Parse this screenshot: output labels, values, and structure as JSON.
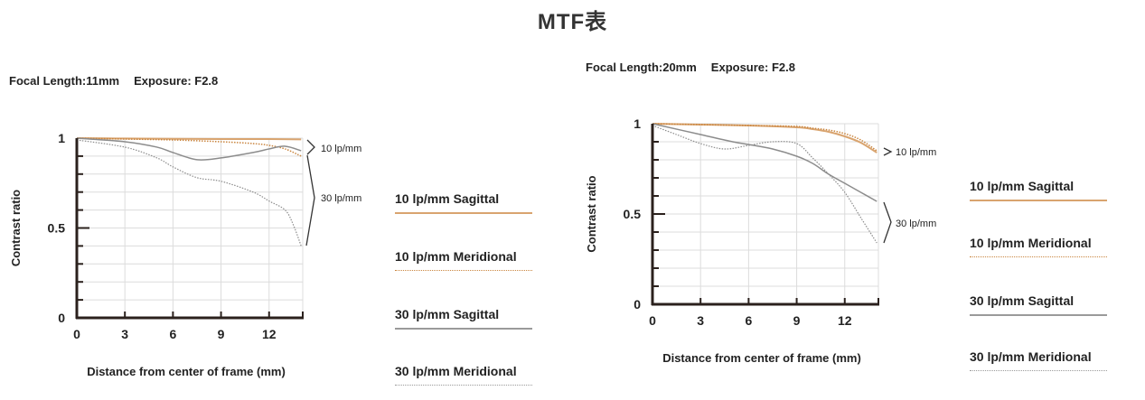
{
  "title": "MTF表",
  "colors": {
    "sagittal10": "#d9a46f",
    "meridional10": "#c9853f",
    "sagittal30": "#8c8c8c",
    "meridional30": "#8c8c8c",
    "axis": "#2b211d",
    "grid": "#dcdcdc"
  },
  "chart_data": [
    {
      "type": "line",
      "info": {
        "focal_length": "Focal Length:11mm",
        "exposure": "Exposure: F2.8"
      },
      "xlabel": "Distance from center of frame (mm)",
      "ylabel": "Contrast ratio",
      "xlim": [
        0,
        14.1
      ],
      "ylim": [
        0,
        1
      ],
      "xticks": [
        0,
        3,
        6,
        9,
        12
      ],
      "xtick_labels": [
        "0",
        "3",
        "6",
        "9",
        "12"
      ],
      "yticks": [
        0,
        0.5,
        1
      ],
      "ytick_labels": [
        "0",
        "0.5",
        "1"
      ],
      "grid": true,
      "annotations": [
        "10 lp/mm",
        "30 lp/mm"
      ],
      "series": [
        {
          "name": "10 lp/mm Sagittal",
          "x": [
            0,
            3,
            6,
            9,
            12,
            14
          ],
          "y": [
            1.0,
            0.998,
            0.996,
            0.995,
            0.995,
            0.993
          ]
        },
        {
          "name": "10 lp/mm Meridional",
          "x": [
            0,
            3,
            6,
            9,
            11,
            12,
            13,
            14
          ],
          "y": [
            1.0,
            0.995,
            0.99,
            0.98,
            0.97,
            0.96,
            0.94,
            0.9
          ]
        },
        {
          "name": "30 lp/mm Sagittal",
          "x": [
            0,
            3,
            5,
            6,
            7.5,
            9,
            11,
            12,
            13,
            14
          ],
          "y": [
            1.0,
            0.98,
            0.95,
            0.92,
            0.88,
            0.89,
            0.92,
            0.94,
            0.955,
            0.93
          ]
        },
        {
          "name": "30 lp/mm Meridional",
          "x": [
            0,
            3,
            5,
            6,
            7.5,
            9,
            11,
            12,
            13,
            13.5,
            14
          ],
          "y": [
            0.99,
            0.95,
            0.89,
            0.84,
            0.78,
            0.76,
            0.7,
            0.65,
            0.6,
            0.52,
            0.4
          ]
        }
      ]
    },
    {
      "type": "line",
      "info": {
        "focal_length": "Focal Length:20mm",
        "exposure": "Exposure: F2.8"
      },
      "xlabel": "Distance from center of frame (mm)",
      "ylabel": "Contrast ratio",
      "xlim": [
        0,
        14.1
      ],
      "ylim": [
        0,
        1
      ],
      "xticks": [
        0,
        3,
        6,
        9,
        12
      ],
      "xtick_labels": [
        "0",
        "3",
        "6",
        "9",
        "12"
      ],
      "yticks": [
        0,
        0.5,
        1
      ],
      "ytick_labels": [
        "0",
        "0.5",
        "1"
      ],
      "grid": true,
      "annotations": [
        "10 lp/mm",
        "30 lp/mm"
      ],
      "series": [
        {
          "name": "10 lp/mm Sagittal",
          "x": [
            0,
            3,
            6,
            9,
            10,
            11,
            12,
            13,
            14
          ],
          "y": [
            1.0,
            0.995,
            0.99,
            0.98,
            0.97,
            0.955,
            0.93,
            0.895,
            0.84
          ]
        },
        {
          "name": "10 lp/mm Meridional",
          "x": [
            0,
            3,
            6,
            9,
            10,
            11,
            12,
            13,
            14
          ],
          "y": [
            1.0,
            0.995,
            0.99,
            0.985,
            0.975,
            0.965,
            0.945,
            0.91,
            0.85
          ]
        },
        {
          "name": "30 lp/mm Sagittal",
          "x": [
            0,
            3,
            5,
            6,
            7.5,
            9,
            10,
            11,
            12,
            13,
            14
          ],
          "y": [
            1.0,
            0.94,
            0.9,
            0.885,
            0.86,
            0.82,
            0.78,
            0.72,
            0.67,
            0.62,
            0.57
          ]
        },
        {
          "name": "30 lp/mm Meridional",
          "x": [
            0,
            1.5,
            3,
            4.5,
            6,
            7.5,
            9,
            10,
            11,
            12,
            13,
            14
          ],
          "y": [
            0.99,
            0.94,
            0.89,
            0.86,
            0.88,
            0.9,
            0.89,
            0.81,
            0.72,
            0.62,
            0.48,
            0.34
          ]
        }
      ]
    }
  ],
  "legend": [
    {
      "label": "10 lp/mm Sagittal",
      "style": "solid",
      "color": "#d9a46f"
    },
    {
      "label": "10 lp/mm Meridional",
      "style": "dotted",
      "color": "#c9853f"
    },
    {
      "label": "30 lp/mm Sagittal",
      "style": "solid",
      "color": "#9a9a9a"
    },
    {
      "label": "30 lp/mm Meridional",
      "style": "dotted",
      "color": "#9a9a9a"
    }
  ]
}
